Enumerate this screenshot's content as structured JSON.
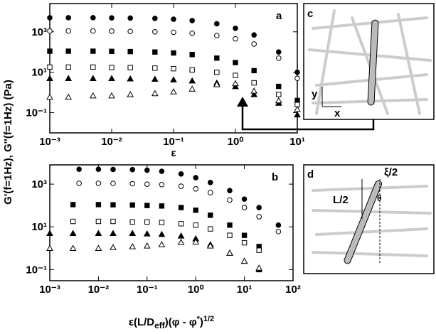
{
  "ylabel": "G'(f=1Hz), G''(f=1Hz) (Pa)",
  "chart_data": [
    {
      "type": "scatter",
      "panel": "a",
      "xlabel": [
        "ε"
      ],
      "log_x": true,
      "log_y": true,
      "xlim": [
        0.001,
        10
      ],
      "ylim": [
        0.01,
        25000
      ],
      "xticks": [
        {
          "value": 0.001,
          "label": "10⁻³"
        },
        {
          "value": 0.01,
          "label": "10⁻²"
        },
        {
          "value": 0.1,
          "label": "10⁻¹"
        },
        {
          "value": 1,
          "label": "10⁰"
        },
        {
          "value": 10,
          "label": "10¹"
        }
      ],
      "yticks": [
        {
          "value": 0.1,
          "label": "10⁻¹"
        },
        {
          "value": 10,
          "label": "10¹"
        },
        {
          "value": 1000,
          "label": "10³"
        }
      ],
      "series": [
        {
          "marker": "circle",
          "filled": true,
          "color": "#000",
          "x": [
            0.001,
            0.002,
            0.005,
            0.01,
            0.02,
            0.05,
            0.1,
            0.2,
            0.5,
            1,
            2,
            5,
            10
          ],
          "values": [
            5000,
            5000,
            5000,
            4900,
            4800,
            4600,
            4200,
            3600,
            2500,
            1500,
            700,
            100,
            10
          ]
        },
        {
          "marker": "circle",
          "filled": false,
          "color": "#000",
          "x": [
            0.001,
            0.002,
            0.005,
            0.01,
            0.02,
            0.05,
            0.1,
            0.2,
            0.5,
            1,
            2,
            5,
            10
          ],
          "values": [
            1100,
            1100,
            1100,
            1080,
            1050,
            1000,
            950,
            850,
            650,
            450,
            250,
            50,
            5
          ]
        },
        {
          "marker": "square",
          "filled": true,
          "color": "#000",
          "x": [
            0.001,
            0.002,
            0.005,
            0.01,
            0.02,
            0.05,
            0.1,
            0.2,
            0.5,
            1,
            2,
            5,
            10
          ],
          "values": [
            110,
            110,
            110,
            108,
            105,
            100,
            90,
            75,
            50,
            30,
            12,
            2,
            0.4
          ]
        },
        {
          "marker": "square",
          "filled": false,
          "color": "#000",
          "x": [
            0.001,
            0.002,
            0.005,
            0.01,
            0.02,
            0.05,
            0.1,
            0.2,
            0.5,
            1,
            2,
            5,
            10
          ],
          "values": [
            18,
            18,
            18,
            17,
            17,
            16,
            15,
            13,
            10,
            7,
            3,
            0.8,
            0.25
          ]
        },
        {
          "marker": "triangle",
          "filled": true,
          "color": "#000",
          "x": [
            0.001,
            0.002,
            0.005,
            0.01,
            0.02,
            0.05,
            0.1,
            0.2,
            0.5,
            1,
            2,
            5,
            10
          ],
          "values": [
            5,
            5,
            5,
            5,
            4.8,
            4.6,
            4.3,
            3.8,
            3,
            2,
            0.8,
            0.3,
            0.08
          ]
        },
        {
          "marker": "triangle",
          "filled": false,
          "color": "#000",
          "x": [
            0.001,
            0.002,
            0.005,
            0.01,
            0.02,
            0.05,
            0.1,
            0.2,
            0.5,
            1,
            2,
            5,
            10
          ],
          "values": [
            0.6,
            0.6,
            0.7,
            0.7,
            0.8,
            0.9,
            1.1,
            1.5,
            2.5,
            2.8,
            1.2,
            0.4,
            0.15
          ]
        }
      ]
    },
    {
      "type": "scatter",
      "panel": "b",
      "xlabel": [
        "ε(L/D",
        "eff",
        ")(φ - φ",
        "*",
        ")",
        "1/2"
      ],
      "log_x": true,
      "log_y": true,
      "xlim": [
        0.001,
        100
      ],
      "ylim": [
        0.03,
        8000
      ],
      "xticks": [
        {
          "value": 0.001,
          "label": "10⁻³"
        },
        {
          "value": 0.01,
          "label": "10⁻²"
        },
        {
          "value": 0.1,
          "label": "10⁻¹"
        },
        {
          "value": 1,
          "label": "10⁰"
        },
        {
          "value": 10,
          "label": "10¹"
        },
        {
          "value": 100,
          "label": "10²"
        }
      ],
      "yticks": [
        {
          "value": 0.1,
          "label": "10⁻¹"
        },
        {
          "value": 10,
          "label": "10¹"
        },
        {
          "value": 1000,
          "label": "10³"
        }
      ],
      "series": [
        {
          "marker": "circle",
          "filled": true,
          "color": "#000",
          "x": [
            0.004,
            0.01,
            0.02,
            0.05,
            0.1,
            0.2,
            0.5,
            1,
            2,
            5,
            10,
            20,
            50
          ],
          "values": [
            5000,
            5000,
            4900,
            4800,
            4500,
            4000,
            3000,
            2000,
            1200,
            500,
            200,
            80,
            12
          ]
        },
        {
          "marker": "circle",
          "filled": false,
          "color": "#000",
          "x": [
            0.004,
            0.01,
            0.02,
            0.05,
            0.1,
            0.2,
            0.5,
            1,
            2,
            5,
            10,
            20,
            50
          ],
          "values": [
            1100,
            1100,
            1080,
            1050,
            1000,
            950,
            800,
            600,
            400,
            180,
            80,
            30,
            6
          ]
        },
        {
          "marker": "square",
          "filled": true,
          "color": "#000",
          "x": [
            0.003,
            0.01,
            0.02,
            0.05,
            0.1,
            0.2,
            0.5,
            1,
            2,
            5,
            10,
            20
          ],
          "values": [
            110,
            110,
            108,
            105,
            100,
            95,
            80,
            60,
            35,
            12,
            4,
            1.2
          ]
        },
        {
          "marker": "square",
          "filled": false,
          "color": "#000",
          "x": [
            0.003,
            0.01,
            0.02,
            0.05,
            0.1,
            0.2,
            0.5,
            1,
            2,
            5,
            10,
            20
          ],
          "values": [
            18,
            18,
            18,
            17,
            17,
            16,
            14,
            12,
            8,
            4,
            1.8,
            0.8
          ]
        },
        {
          "marker": "triangle",
          "filled": true,
          "color": "#000",
          "x": [
            0.001,
            0.003,
            0.01,
            0.02,
            0.05,
            0.1,
            0.2,
            0.5,
            1,
            2,
            5,
            10,
            20
          ],
          "values": [
            5,
            5,
            5,
            5,
            5,
            4.8,
            4.5,
            3.8,
            2.8,
            1.5,
            0.6,
            0.25,
            0.1
          ]
        },
        {
          "marker": "triangle",
          "filled": false,
          "color": "#000",
          "x": [
            0.001,
            0.003,
            0.01,
            0.02,
            0.05,
            0.1,
            0.2,
            0.5,
            1,
            2,
            5,
            10,
            20
          ],
          "values": [
            1,
            1,
            1,
            1.1,
            1.2,
            1.3,
            1.5,
            1.9,
            2,
            1.3,
            0.6,
            0.25,
            0.12
          ]
        }
      ]
    }
  ],
  "diagrams": {
    "c": {
      "label": "c",
      "x": "x",
      "y": "y"
    },
    "d": {
      "label": "d",
      "length": "L/2",
      "xi": "ξ/2",
      "theta": "θ"
    }
  }
}
